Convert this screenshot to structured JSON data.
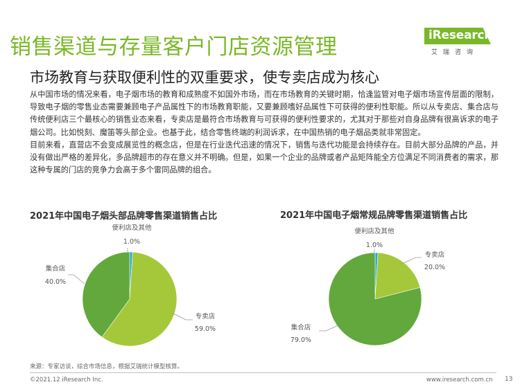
{
  "header": {
    "title": "销售渠道与存量客户门店资源管理",
    "subtitle": "市场教育与获取便利性的双重要求，使专卖店成为核心"
  },
  "logo": {
    "text": "iResearch",
    "sub": "艾瑞咨询"
  },
  "body": {
    "paragraph1": "从中国市场的情况来看，电子烟市场的教育和成熟度不如国外市场，而在市场教育的关键时期，恰逢监管对电子烟市场宣传层面的限制，导致电子烟的零售业态需要兼顾电子产品属性下的市场教育职能，又要兼顾嗜好品属性下可获得的便利性职能。所以从专卖店、集合店与传统便利店三个最核心的销售业态来看，专卖店是最符合市场教育与可获得的便利性要求的，尤其对于那些对自身品牌有很高诉求的电子烟公司。比如悦刻、魔笛等头部企业。也基于此，结合零售终端的利润诉求，在中国热销的电子烟品类就非常固定。",
    "paragraph2": "目前来看，直营店不会变成展览性的概念店，但是在行业迭代迅速的情况下，销售与迭代功能是会持续存在。目前大部分品牌的产品，并没有做出严格的差异化，多品牌超市的存在意义并不明确。但是，如果一个企业的品牌或者产品矩阵能全方位满足不同消费者的需求，那这种专属的门店的竞争力会高于多个雷同品牌的组合。"
  },
  "chart_data": [
    {
      "type": "pie",
      "title": "2021年中国电子烟头部品牌零售渠道销售占比",
      "slices": [
        {
          "name": "专卖店",
          "value": 59.0,
          "label": "59.0%",
          "color": "#a5c83a"
        },
        {
          "name": "集合店",
          "value": 40.0,
          "label": "40.0%",
          "color": "#62a83c"
        },
        {
          "name": "便利店及其他",
          "value": 1.0,
          "label": "1.0%",
          "color": "#29a7d6"
        }
      ]
    },
    {
      "type": "pie",
      "title": "2021年中国电子烟常规品牌零售渠道销售占比",
      "slices": [
        {
          "name": "专卖店",
          "value": 20.0,
          "label": "20.0%",
          "color": "#a5c83a"
        },
        {
          "name": "集合店",
          "value": 79.0,
          "label": "79.0%",
          "color": "#62a83c"
        },
        {
          "name": "便利店及其他",
          "value": 1.0,
          "label": "1.0%",
          "color": "#29a7d6"
        }
      ]
    }
  ],
  "source": "来源：专家访谈，综合市场信息，根据艾瑞统计模型核算。",
  "footer": {
    "copyright": "©2021.12 iResearch Inc.",
    "website": "www.iresearch.com.cn",
    "page": "13"
  }
}
